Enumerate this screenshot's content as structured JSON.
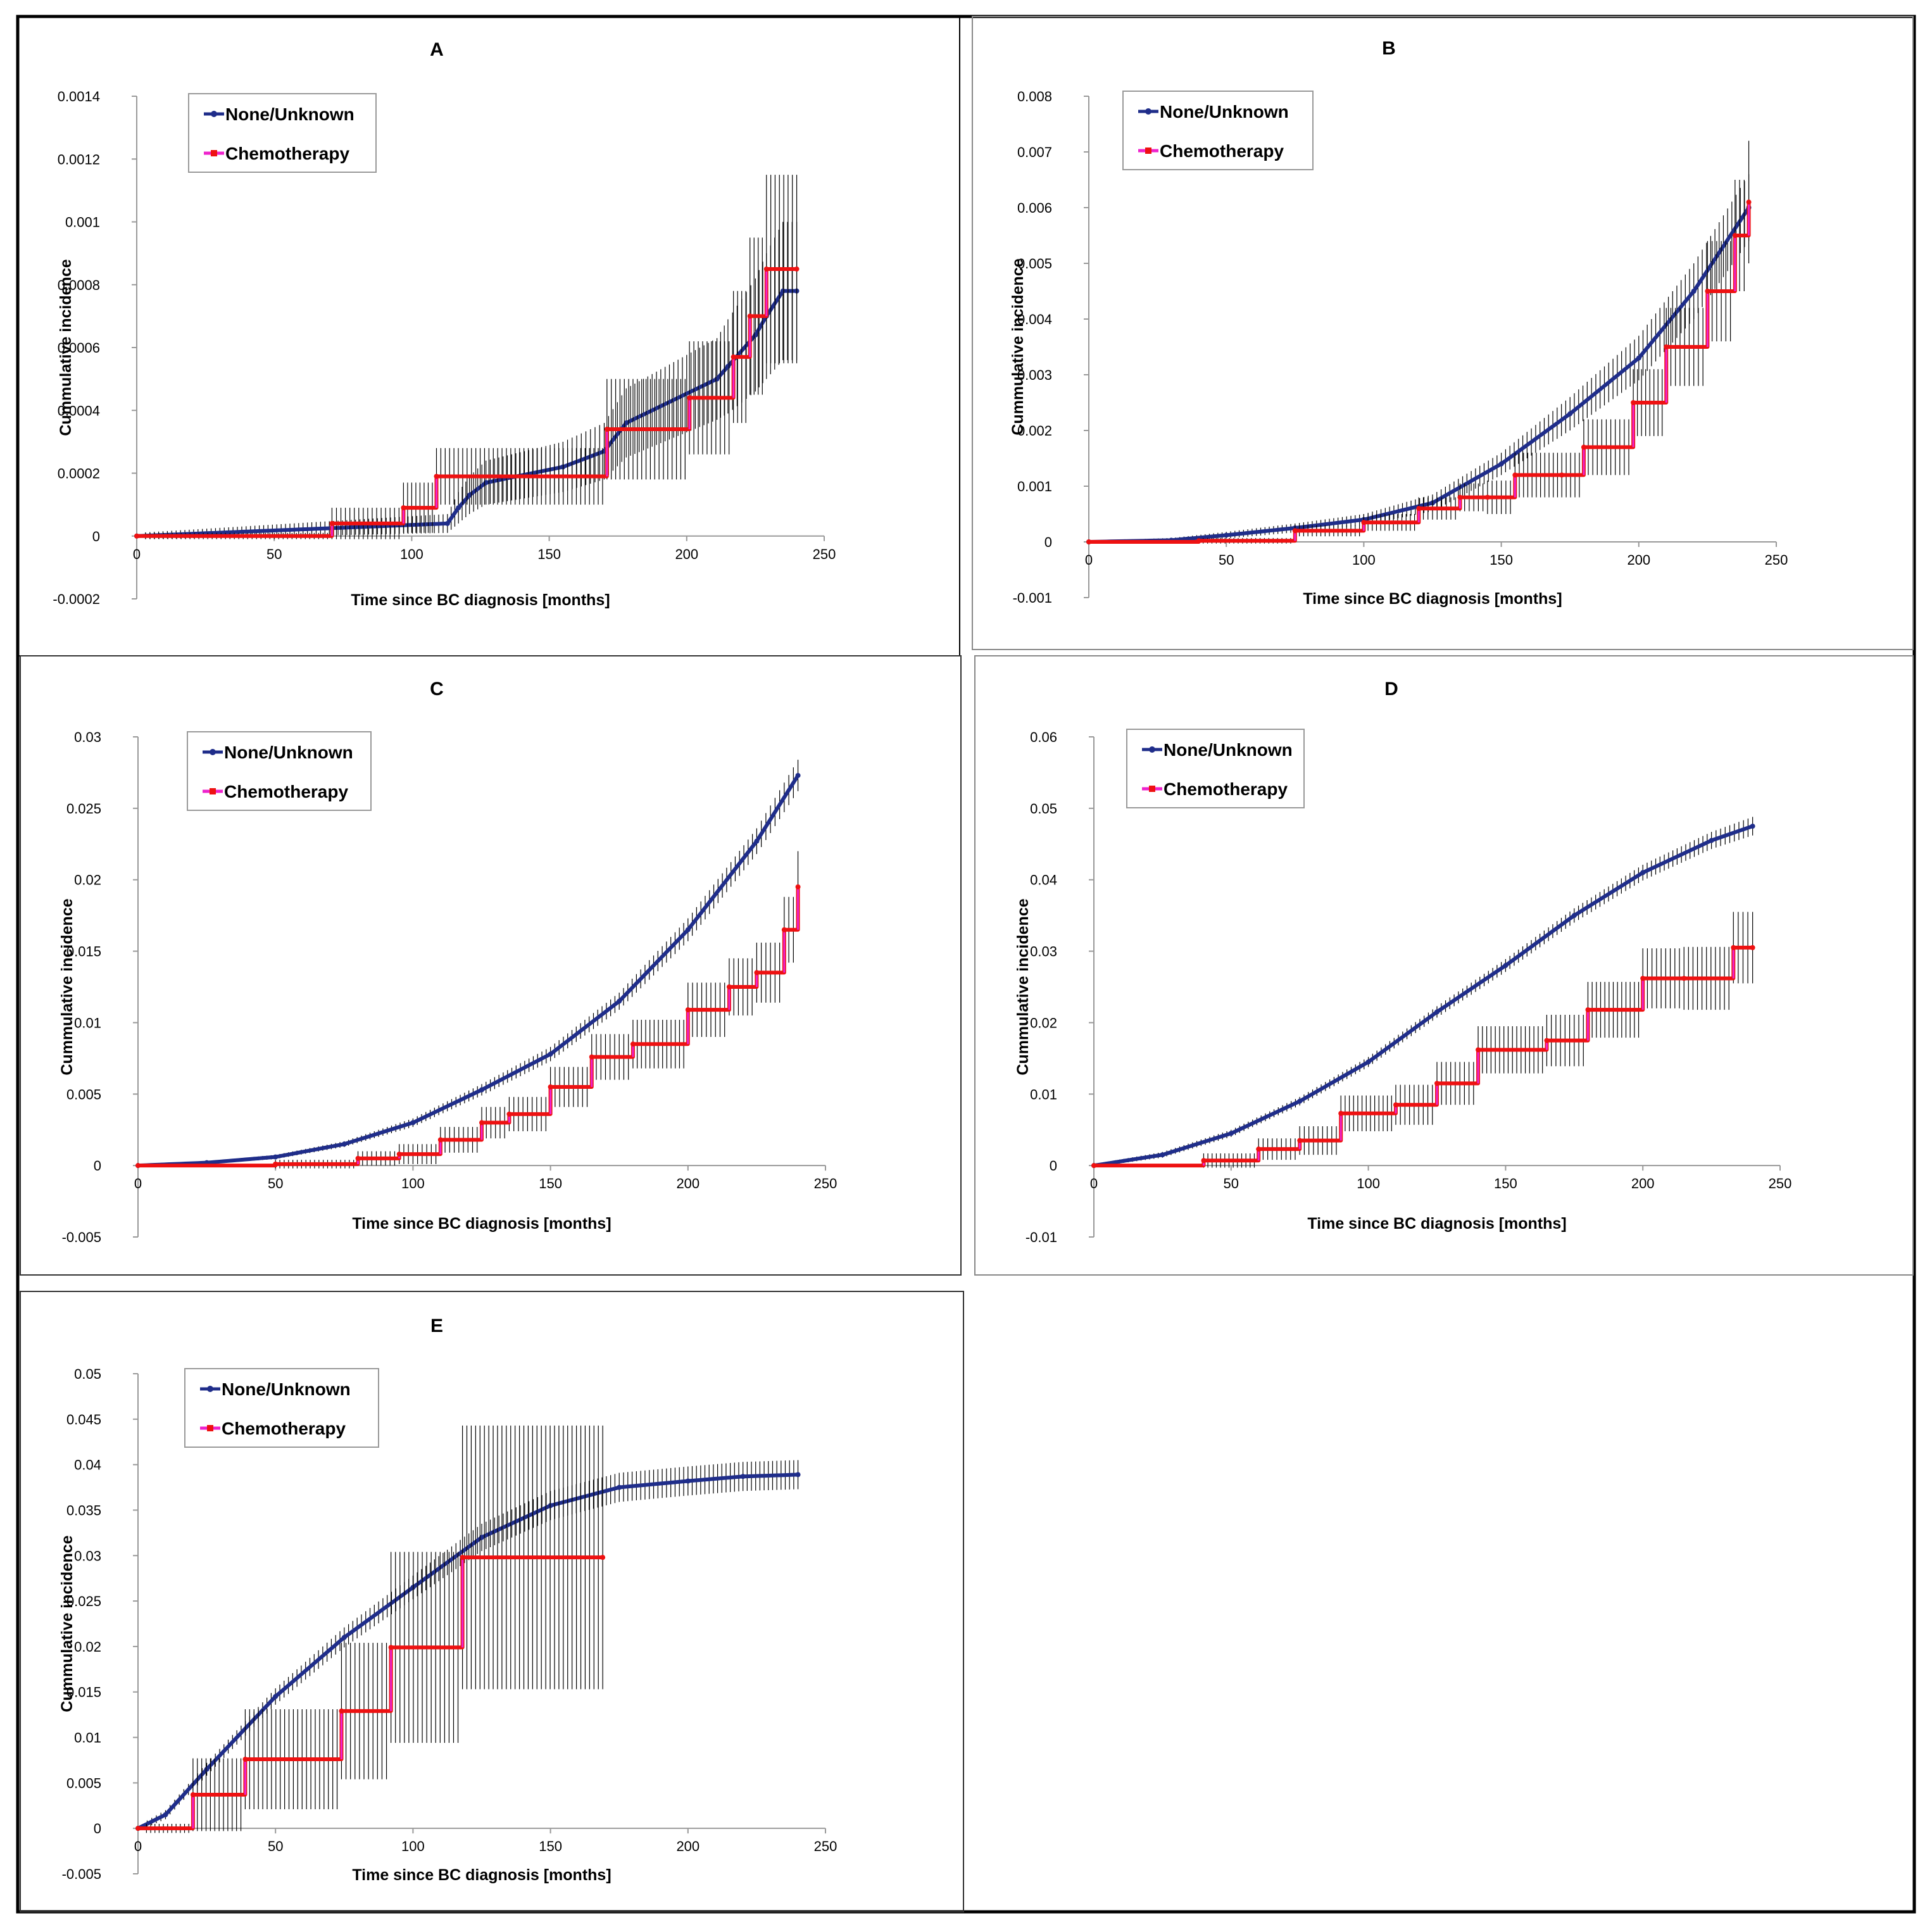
{
  "colors": {
    "none_unknown": "#1f2d8a",
    "chemotherapy": "#ee1111",
    "chemo_marker": "#ee22cc",
    "error_bar": "#000000",
    "frame": "#000000"
  },
  "chart_data": [
    {
      "panel": "A",
      "title": "A",
      "type": "line-step",
      "xlabel": "Time since BC diagnosis [months]",
      "ylabel": "Cummulative incidence",
      "xlim": [
        0,
        250
      ],
      "ylim": [
        -0.0002,
        0.0014
      ],
      "xticks": [
        "0",
        "50",
        "100",
        "150",
        "200",
        "250"
      ],
      "yticks": [
        "-0.0002",
        "0",
        "0.0002",
        "0.0004",
        "0.0006",
        "0.0008",
        "0.001",
        "0.0012",
        "0.0014"
      ],
      "legend": [
        "None/Unknown",
        "Chemotherapy"
      ],
      "series": [
        {
          "name": "None/Unknown",
          "x": [
            0,
            113,
            117,
            121,
            127,
            155,
            170,
            178,
            211,
            215,
            225,
            229,
            235,
            240
          ],
          "y": [
            0,
            4e-05,
            9e-05,
            0.00013,
            0.00017,
            0.00022,
            0.00027,
            0.00036,
            0.0005,
            0.00054,
            0.00064,
            0.0007,
            0.00078,
            0.00078
          ],
          "err": [
            1e-05,
            3e-05,
            5e-05,
            6e-05,
            7e-05,
            8e-05,
            9e-05,
            0.00011,
            0.00013,
            0.00015,
            0.00018,
            0.0002,
            0.00022,
            0.00022
          ]
        },
        {
          "name": "Chemotherapy",
          "x": [
            0,
            71,
            97,
            109,
            171,
            201,
            217,
            223,
            229,
            240
          ],
          "y": [
            0,
            4e-05,
            9e-05,
            0.00019,
            0.00034,
            0.00044,
            0.00057,
            0.0007,
            0.00085,
            0.00085
          ],
          "err": [
            1e-05,
            5e-05,
            8e-05,
            9e-05,
            0.00016,
            0.00018,
            0.00021,
            0.00025,
            0.0003,
            0.0003
          ]
        }
      ]
    },
    {
      "panel": "B",
      "title": "B",
      "type": "line-step",
      "xlabel": "Time since BC diagnosis [months]",
      "ylabel": "Cummulative incidence",
      "xlim": [
        0,
        250
      ],
      "ylim": [
        -0.001,
        0.008
      ],
      "xticks": [
        "0",
        "50",
        "100",
        "150",
        "200",
        "250"
      ],
      "yticks": [
        "-0.001",
        "0",
        "0.001",
        "0.002",
        "0.003",
        "0.004",
        "0.005",
        "0.006",
        "0.007",
        "0.008"
      ],
      "legend": [
        "None/Unknown",
        "Chemotherapy"
      ],
      "series": [
        {
          "name": "None/Unknown",
          "x": [
            0,
            30,
            50,
            75,
            100,
            125,
            150,
            175,
            200,
            220,
            240
          ],
          "y": [
            0,
            3e-05,
            0.00012,
            0.00025,
            0.0004,
            0.0007,
            0.0014,
            0.0023,
            0.0033,
            0.0045,
            0.006
          ],
          "err": [
            2e-05,
            4e-05,
            6e-05,
            8e-05,
            0.0001,
            0.00015,
            0.0002,
            0.0003,
            0.0004,
            0.0005,
            0.0006
          ]
        },
        {
          "name": "Chemotherapy",
          "x": [
            0,
            40,
            75,
            100,
            120,
            135,
            145,
            155,
            172,
            180,
            198,
            210,
            225,
            235,
            240
          ],
          "y": [
            0,
            2e-05,
            0.0002,
            0.00035,
            0.0006,
            0.0008,
            0.0008,
            0.0012,
            0.0012,
            0.0017,
            0.0025,
            0.0035,
            0.0045,
            0.0055,
            0.0061
          ],
          "err": [
            2e-05,
            5e-05,
            0.0001,
            0.00015,
            0.0002,
            0.00025,
            0.0003,
            0.0004,
            0.0004,
            0.0005,
            0.0006,
            0.0007,
            0.0009,
            0.001,
            0.0011
          ]
        }
      ]
    },
    {
      "panel": "C",
      "title": "C",
      "type": "line-step",
      "xlabel": "Time since BC diagnosis [months]",
      "ylabel": "Cummulative incidence",
      "xlim": [
        0,
        250
      ],
      "ylim": [
        -0.005,
        0.03
      ],
      "xticks": [
        "0",
        "50",
        "100",
        "150",
        "200",
        "250"
      ],
      "yticks": [
        "-0.005",
        "0",
        "0.005",
        "0.01",
        "0.015",
        "0.02",
        "0.025",
        "0.03"
      ],
      "legend": [
        "None/Unknown",
        "Chemotherapy"
      ],
      "series": [
        {
          "name": "None/Unknown",
          "x": [
            0,
            25,
            50,
            75,
            100,
            125,
            150,
            175,
            200,
            225,
            240
          ],
          "y": [
            0,
            0.0002,
            0.0006,
            0.0015,
            0.003,
            0.0053,
            0.0078,
            0.0115,
            0.0165,
            0.0227,
            0.0273
          ],
          "err": [
            5e-05,
            0.0001,
            0.00015,
            0.0002,
            0.0003,
            0.0004,
            0.0005,
            0.0006,
            0.0008,
            0.0009,
            0.0011
          ]
        },
        {
          "name": "Chemotherapy",
          "x": [
            0,
            50,
            80,
            95,
            110,
            125,
            135,
            150,
            165,
            180,
            200,
            215,
            225,
            235,
            240
          ],
          "y": [
            0,
            0.0001,
            0.0005,
            0.0008,
            0.0018,
            0.003,
            0.0036,
            0.0055,
            0.0076,
            0.0085,
            0.0109,
            0.0125,
            0.0135,
            0.0165,
            0.0195
          ],
          "err": [
            0.0001,
            0.0003,
            0.0005,
            0.0007,
            0.0009,
            0.0011,
            0.0012,
            0.0014,
            0.0016,
            0.0017,
            0.0019,
            0.002,
            0.0021,
            0.0023,
            0.0025
          ]
        }
      ]
    },
    {
      "panel": "D",
      "title": "D",
      "type": "line-step",
      "xlabel": "Time since BC diagnosis [months]",
      "ylabel": "Cummulative incidence",
      "xlim": [
        0,
        250
      ],
      "ylim": [
        -0.01,
        0.06
      ],
      "xticks": [
        "0",
        "50",
        "100",
        "150",
        "200",
        "250"
      ],
      "yticks": [
        "-0.01",
        "0",
        "0.01",
        "0.02",
        "0.03",
        "0.04",
        "0.05",
        "0.06"
      ],
      "legend": [
        "None/Unknown",
        "Chemotherapy"
      ],
      "series": [
        {
          "name": "None/Unknown",
          "x": [
            0,
            25,
            50,
            75,
            100,
            125,
            150,
            175,
            200,
            225,
            240
          ],
          "y": [
            0,
            0.0015,
            0.0045,
            0.009,
            0.0145,
            0.0215,
            0.028,
            0.035,
            0.041,
            0.0455,
            0.0475
          ],
          "err": [
            0.0002,
            0.0004,
            0.0005,
            0.0006,
            0.0007,
            0.0008,
            0.0009,
            0.001,
            0.0011,
            0.0012,
            0.0013
          ]
        },
        {
          "name": "Chemotherapy",
          "x": [
            0,
            40,
            60,
            75,
            90,
            110,
            125,
            140,
            165,
            180,
            200,
            215,
            233,
            240
          ],
          "y": [
            0,
            0.0007,
            0.0023,
            0.0035,
            0.0073,
            0.0085,
            0.0115,
            0.0162,
            0.0175,
            0.0218,
            0.0262,
            0.0262,
            0.0305,
            0.0305
          ],
          "err": [
            0.0002,
            0.001,
            0.0015,
            0.002,
            0.0025,
            0.0028,
            0.003,
            0.0033,
            0.0036,
            0.0039,
            0.0042,
            0.0044,
            0.005,
            0.005
          ]
        }
      ]
    },
    {
      "panel": "E",
      "title": "E",
      "type": "line-step",
      "xlabel": "Time since BC diagnosis [months]",
      "ylabel": "Cummulative incidence",
      "xlim": [
        0,
        250
      ],
      "ylim": [
        -0.005,
        0.05
      ],
      "xticks": [
        "0",
        "50",
        "100",
        "150",
        "200",
        "250"
      ],
      "yticks": [
        "-0.005",
        "0",
        "0.005",
        "0.01",
        "0.015",
        "0.02",
        "0.025",
        "0.03",
        "0.035",
        "0.04",
        "0.045",
        "0.05"
      ],
      "legend": [
        "None/Unknown",
        "Chemotherapy"
      ],
      "series": [
        {
          "name": "None/Unknown",
          "x": [
            0,
            10,
            25,
            50,
            75,
            100,
            125,
            150,
            175,
            200,
            220,
            240
          ],
          "y": [
            0,
            0.0015,
            0.0065,
            0.0145,
            0.021,
            0.0265,
            0.032,
            0.0355,
            0.0375,
            0.0382,
            0.0387,
            0.0389
          ],
          "err": [
            0.0003,
            0.0005,
            0.0007,
            0.0009,
            0.0011,
            0.0013,
            0.0015,
            0.0016,
            0.0016,
            0.0016,
            0.0016,
            0.0016
          ]
        },
        {
          "name": "Chemotherapy",
          "x": [
            0,
            20,
            39,
            74,
            92,
            118,
            169
          ],
          "y": [
            0,
            0.0037,
            0.0076,
            0.0129,
            0.0199,
            0.0298,
            0.0298
          ],
          "err": [
            0.0005,
            0.004,
            0.0055,
            0.0075,
            0.0105,
            0.0145,
            0.0145
          ]
        }
      ]
    }
  ]
}
